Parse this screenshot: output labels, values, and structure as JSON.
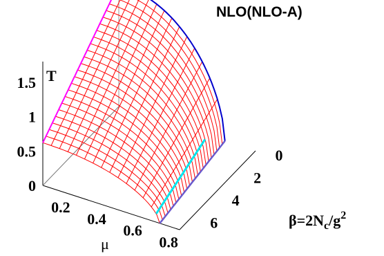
{
  "chart_data": {
    "type": "surface",
    "title": "NLO(NLO-A)",
    "zlabel": "T",
    "xlabel": "μ",
    "ylabel_parts": {
      "prefix": "β=2N",
      "sub": "c",
      "mid": "/g",
      "sup": "2"
    },
    "x_ticks": [
      "0.2",
      "0.4",
      "0.6",
      "0.8"
    ],
    "y_ticks": [
      "0",
      "2",
      "4",
      "6"
    ],
    "z_ticks": [
      "0",
      "0.5",
      "1",
      "1.5"
    ],
    "xlim": [
      0.07,
      0.83
    ],
    "ylim": [
      0,
      7
    ],
    "zlim": [
      0,
      1.8
    ],
    "surface": {
      "description_values": {
        "T_at_mu_min_beta_max": 0.62,
        "T_at_mu_min_beta_0": 1.78,
        "mu_edge_beta_0": 0.66,
        "mu_edge_beta_max": 0.72
      }
    },
    "colors": {
      "mesh": "#ff0000",
      "left_edge": "#ff00ff",
      "back_edge": "#0000cc",
      "transition_line": "#00e5ee",
      "bottom_edge": "#6a5acd",
      "axes": "#000000"
    },
    "grid": true
  }
}
